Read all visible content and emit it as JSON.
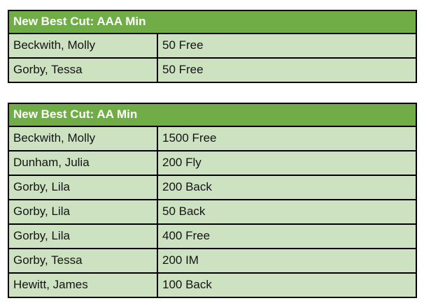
{
  "colors": {
    "header_bg": "#70AD47",
    "row_bg": "#CDE2C1",
    "border": "#000000",
    "header_text": "#FFFFFF",
    "cell_text": "#141414"
  },
  "tables": [
    {
      "title": "New Best Cut: AAA Min",
      "rows": [
        {
          "name": "Beckwith, Molly",
          "event": "50 Free"
        },
        {
          "name": "Gorby, Tessa",
          "event": "50 Free"
        }
      ]
    },
    {
      "title": "New Best Cut: AA Min",
      "rows": [
        {
          "name": "Beckwith, Molly",
          "event": "1500 Free"
        },
        {
          "name": "Dunham, Julia",
          "event": "200 Fly"
        },
        {
          "name": "Gorby, Lila",
          "event": "200 Back"
        },
        {
          "name": "Gorby, Lila",
          "event": "50 Back"
        },
        {
          "name": "Gorby, Lila",
          "event": "400 Free"
        },
        {
          "name": "Gorby, Tessa",
          "event": "200 IM"
        },
        {
          "name": "Hewitt, James",
          "event": "100 Back"
        }
      ]
    }
  ]
}
